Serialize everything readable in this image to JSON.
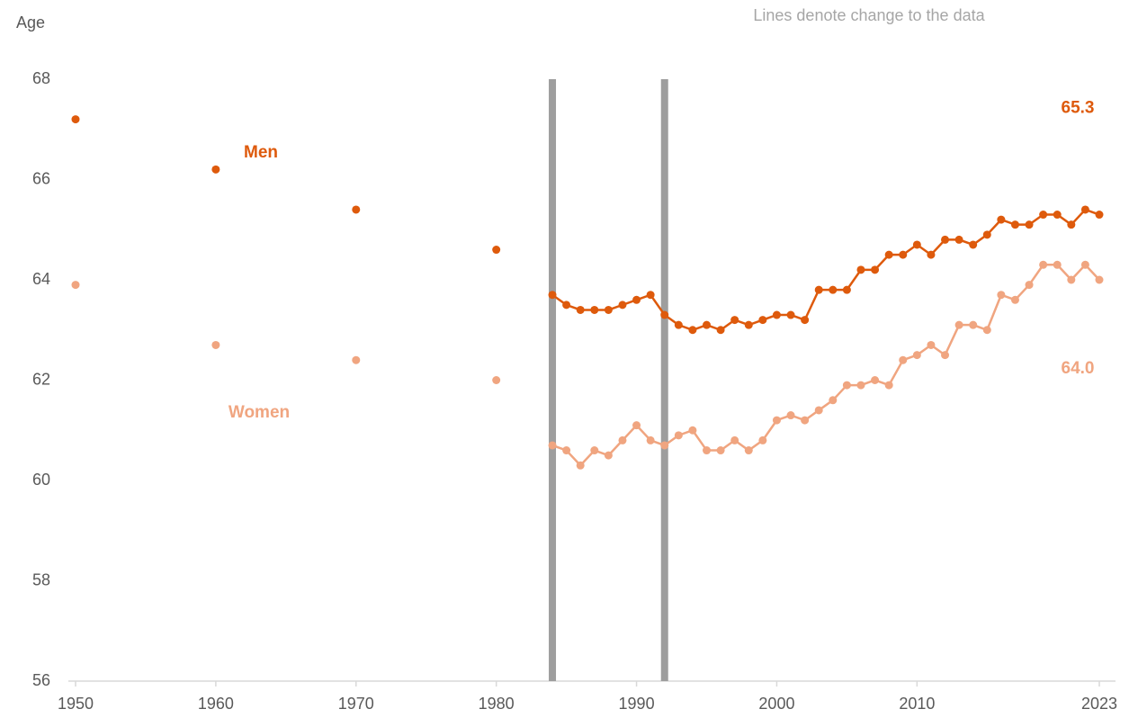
{
  "chart_data": {
    "type": "line",
    "y_label": "Age",
    "note": "Lines denote change to the data",
    "xlim": [
      1950,
      2023
    ],
    "xticks": [
      1950,
      1960,
      1970,
      1980,
      1990,
      2000,
      2010,
      2023
    ],
    "ylim": [
      56,
      68
    ],
    "yticks": [
      56,
      58,
      60,
      62,
      64,
      66,
      68
    ],
    "vlines": [
      1984,
      1992
    ],
    "vline_color": "#9e9e9e",
    "x": [
      1950,
      1960,
      1970,
      1980,
      1984,
      1985,
      1986,
      1987,
      1988,
      1989,
      1990,
      1991,
      1992,
      1993,
      1994,
      1995,
      1996,
      1997,
      1998,
      1999,
      2000,
      2001,
      2002,
      2003,
      2004,
      2005,
      2006,
      2007,
      2008,
      2009,
      2010,
      2011,
      2012,
      2013,
      2014,
      2015,
      2016,
      2017,
      2018,
      2019,
      2020,
      2021,
      2022,
      2023
    ],
    "series": [
      {
        "name": "Men",
        "color": "#de5a0c",
        "end_label": "65.3",
        "values": [
          67.2,
          66.2,
          65.4,
          64.6,
          63.7,
          63.5,
          63.4,
          63.4,
          63.4,
          63.5,
          63.6,
          63.7,
          63.3,
          63.1,
          63.0,
          63.1,
          63.0,
          63.2,
          63.1,
          63.2,
          63.3,
          63.3,
          63.2,
          63.8,
          63.8,
          63.8,
          64.2,
          64.2,
          64.5,
          64.5,
          64.7,
          64.5,
          64.8,
          64.8,
          64.7,
          64.9,
          65.2,
          65.1,
          65.1,
          65.3,
          65.3,
          65.1,
          65.4,
          65.3
        ]
      },
      {
        "name": "Women",
        "color": "#f0a580",
        "end_label": "64.0",
        "values": [
          63.9,
          62.7,
          62.4,
          62.0,
          60.7,
          60.6,
          60.3,
          60.6,
          60.5,
          60.8,
          61.1,
          60.8,
          60.7,
          60.9,
          61.0,
          60.6,
          60.6,
          60.8,
          60.6,
          60.8,
          61.2,
          61.3,
          61.2,
          61.4,
          61.6,
          61.9,
          61.9,
          62.0,
          61.9,
          62.4,
          62.5,
          62.7,
          62.5,
          63.1,
          63.1,
          63.0,
          63.7,
          63.6,
          63.9,
          64.3,
          64.3,
          64.0,
          64.3,
          64.0
        ]
      }
    ]
  }
}
